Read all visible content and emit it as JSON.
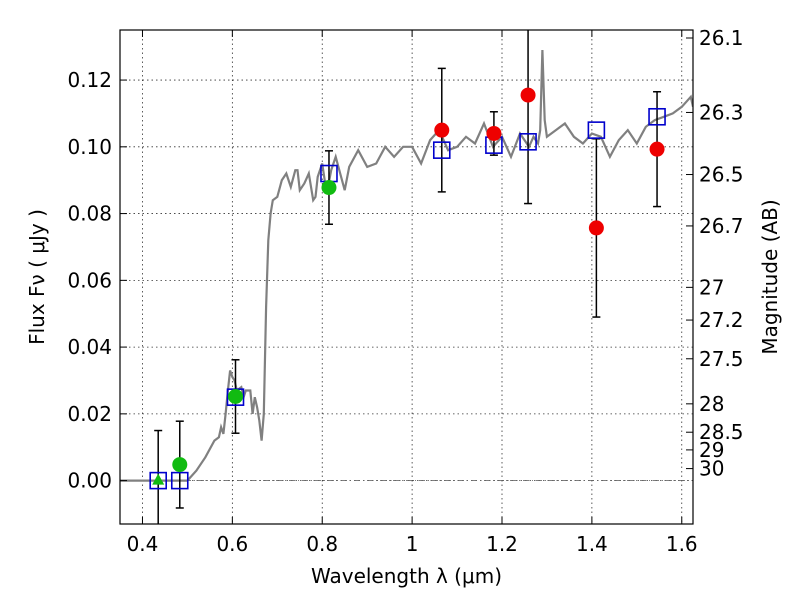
{
  "chart_data": {
    "type": "scatter",
    "title": "",
    "xlabel": "Wavelength  λ (μm)",
    "ylabel": "Flux  Fν  ( μJy )",
    "ylabel_right": "Magnitude (AB)",
    "xlim": [
      0.35,
      1.625
    ],
    "ylim": [
      -0.013,
      0.135
    ],
    "grid": true,
    "x_ticks": [
      {
        "value": 0.4,
        "label": "0.4"
      },
      {
        "value": 0.6,
        "label": "0.6"
      },
      {
        "value": 0.8,
        "label": "0.8"
      },
      {
        "value": 1.0,
        "label": "1"
      },
      {
        "value": 1.2,
        "label": "1.2"
      },
      {
        "value": 1.4,
        "label": "1.4"
      },
      {
        "value": 1.6,
        "label": "1.6"
      }
    ],
    "y_ticks": [
      {
        "value": 0.0,
        "label": "0.00"
      },
      {
        "value": 0.02,
        "label": "0.02"
      },
      {
        "value": 0.04,
        "label": "0.04"
      },
      {
        "value": 0.06,
        "label": "0.06"
      },
      {
        "value": 0.08,
        "label": "0.08"
      },
      {
        "value": 0.1,
        "label": "0.10"
      },
      {
        "value": 0.12,
        "label": "0.12"
      }
    ],
    "right_ticks": [
      {
        "label": "26.1",
        "flux": 0.1326
      },
      {
        "label": "26.3",
        "flux": 0.1103
      },
      {
        "label": "26.5",
        "flux": 0.0917
      },
      {
        "label": "26.7",
        "flux": 0.0763
      },
      {
        "label": "27",
        "flux": 0.0579
      },
      {
        "label": "27.2",
        "flux": 0.0481
      },
      {
        "label": "27.5",
        "flux": 0.0365
      },
      {
        "label": "28",
        "flux": 0.023
      },
      {
        "label": "28.5",
        "flux": 0.0145
      },
      {
        "label": "29",
        "flux": 0.0092
      },
      {
        "label": "30",
        "flux": 0.0036
      }
    ],
    "series": [
      {
        "kind": "template-spectrum",
        "color": "#808080",
        "x": [
          0.35,
          0.44,
          0.48,
          0.5,
          0.52,
          0.54,
          0.56,
          0.57,
          0.575,
          0.58,
          0.585,
          0.59,
          0.595,
          0.6,
          0.605,
          0.61,
          0.62,
          0.625,
          0.63,
          0.64,
          0.645,
          0.65,
          0.655,
          0.66,
          0.665,
          0.67,
          0.675,
          0.68,
          0.685,
          0.69,
          0.7,
          0.71,
          0.72,
          0.73,
          0.74,
          0.745,
          0.75,
          0.76,
          0.77,
          0.78,
          0.785,
          0.79,
          0.8,
          0.81,
          0.82,
          0.83,
          0.84,
          0.85,
          0.86,
          0.88,
          0.9,
          0.92,
          0.94,
          0.96,
          0.98,
          1.0,
          1.02,
          1.04,
          1.06,
          1.08,
          1.1,
          1.12,
          1.14,
          1.16,
          1.18,
          1.2,
          1.22,
          1.24,
          1.26,
          1.27,
          1.28,
          1.285,
          1.29,
          1.295,
          1.3,
          1.32,
          1.34,
          1.36,
          1.38,
          1.4,
          1.42,
          1.44,
          1.46,
          1.48,
          1.5,
          1.52,
          1.54,
          1.56,
          1.58,
          1.6,
          1.62,
          1.625
        ],
        "y": [
          0.0,
          0.0,
          0.0,
          0.0,
          0.003,
          0.007,
          0.012,
          0.013,
          0.016,
          0.014,
          0.02,
          0.027,
          0.033,
          0.031,
          0.03,
          0.027,
          0.028,
          0.025,
          0.027,
          0.027,
          0.02,
          0.025,
          0.022,
          0.018,
          0.012,
          0.02,
          0.052,
          0.072,
          0.08,
          0.084,
          0.085,
          0.09,
          0.092,
          0.088,
          0.093,
          0.093,
          0.087,
          0.089,
          0.092,
          0.084,
          0.085,
          0.091,
          0.095,
          0.086,
          0.093,
          0.097,
          0.092,
          0.087,
          0.094,
          0.099,
          0.094,
          0.095,
          0.1,
          0.097,
          0.1,
          0.1,
          0.095,
          0.102,
          0.105,
          0.099,
          0.1,
          0.103,
          0.101,
          0.107,
          0.1,
          0.103,
          0.097,
          0.104,
          0.1,
          0.103,
          0.101,
          0.105,
          0.129,
          0.108,
          0.103,
          0.105,
          0.107,
          0.103,
          0.101,
          0.104,
          0.103,
          0.097,
          0.102,
          0.105,
          0.101,
          0.106,
          0.108,
          0.109,
          0.11,
          0.112,
          0.115,
          0.112
        ]
      },
      {
        "kind": "model-boxes",
        "color": "#0000cc",
        "x": [
          0.435,
          0.483,
          0.607,
          0.815,
          1.066,
          1.182,
          1.258,
          1.41,
          1.545
        ],
        "y": [
          0.0,
          0.0,
          0.025,
          0.092,
          0.099,
          0.1005,
          0.1015,
          0.105,
          0.109
        ]
      },
      {
        "kind": "detections",
        "color": "#11bb11",
        "x": [
          0.483,
          0.607,
          0.815
        ],
        "y": [
          0.0048,
          0.0252,
          0.0878
        ],
        "yerr": [
          0.013,
          0.011,
          0.011
        ]
      },
      {
        "kind": "nir-detections",
        "color": "#ee0000",
        "x": [
          1.066,
          1.182,
          1.258,
          1.41,
          1.545
        ],
        "y": [
          0.105,
          0.104,
          0.1155,
          0.0757,
          0.0993
        ],
        "yerr": [
          0.0185,
          0.0065,
          0.0325,
          0.0267,
          0.0172
        ]
      },
      {
        "kind": "limit",
        "color": "#11bb11",
        "marker": "triangle",
        "x": [
          0.435
        ],
        "y": [
          0.0
        ],
        "yerr": [
          0.015
        ]
      }
    ]
  }
}
